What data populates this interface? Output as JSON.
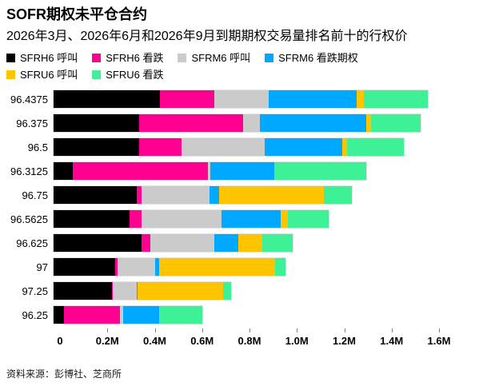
{
  "header": {
    "title": "SOFR期权未平仓合约",
    "subtitle": "2026年3月、2026年6月和2026年9月到期期权交易量排名前十的行权价"
  },
  "footer": {
    "source": "资料来源：彭博社、芝商所"
  },
  "chart_data": {
    "type": "bar",
    "orientation": "horizontal",
    "stacked": true,
    "grid": false,
    "legend_position": "top",
    "title": "SOFR期权未平仓合约",
    "xlabel": "",
    "ylabel": "",
    "xlim": [
      0,
      1.6
    ],
    "x_unit": "M",
    "x_ticks": [
      "0",
      "0.2M",
      "0.4M",
      "0.6M",
      "0.8M",
      "1.0M",
      "1.2M",
      "1.4M",
      "1.6M"
    ],
    "categories": [
      "96.4375",
      "96.375",
      "96.5",
      "96.3125",
      "96.75",
      "96.5625",
      "96.625",
      "97",
      "97.25",
      "96.25"
    ],
    "series": [
      {
        "name": "SFRH6 呼叫",
        "color": "#000000",
        "values": [
          0.45,
          0.36,
          0.36,
          0.08,
          0.35,
          0.32,
          0.37,
          0.26,
          0.245,
          0.045
        ]
      },
      {
        "name": "SFRH6 看跌",
        "color": "#FF0090",
        "values": [
          0.23,
          0.44,
          0.18,
          0.57,
          0.02,
          0.05,
          0.04,
          0.01,
          0.005,
          0.235
        ]
      },
      {
        "name": "SFRM6 呼叫",
        "color": "#CBCBCB",
        "values": [
          0.23,
          0.07,
          0.35,
          0.01,
          0.29,
          0.34,
          0.27,
          0.16,
          0.1,
          0.015
        ]
      },
      {
        "name": "SFRM6 看跌期权",
        "color": "#00A8FF",
        "values": [
          0.37,
          0.45,
          0.33,
          0.27,
          0.04,
          0.25,
          0.1,
          0.015,
          0.005,
          0.15
        ]
      },
      {
        "name": "SFRU6 呼叫",
        "color": "#FFC400",
        "values": [
          0.03,
          0.02,
          0.02,
          0.0,
          0.44,
          0.03,
          0.1,
          0.49,
          0.36,
          0.0
        ]
      },
      {
        "name": "SFRU6 看跌",
        "color": "#3EF096",
        "values": [
          0.27,
          0.21,
          0.24,
          0.39,
          0.12,
          0.17,
          0.13,
          0.045,
          0.035,
          0.185
        ]
      }
    ]
  }
}
